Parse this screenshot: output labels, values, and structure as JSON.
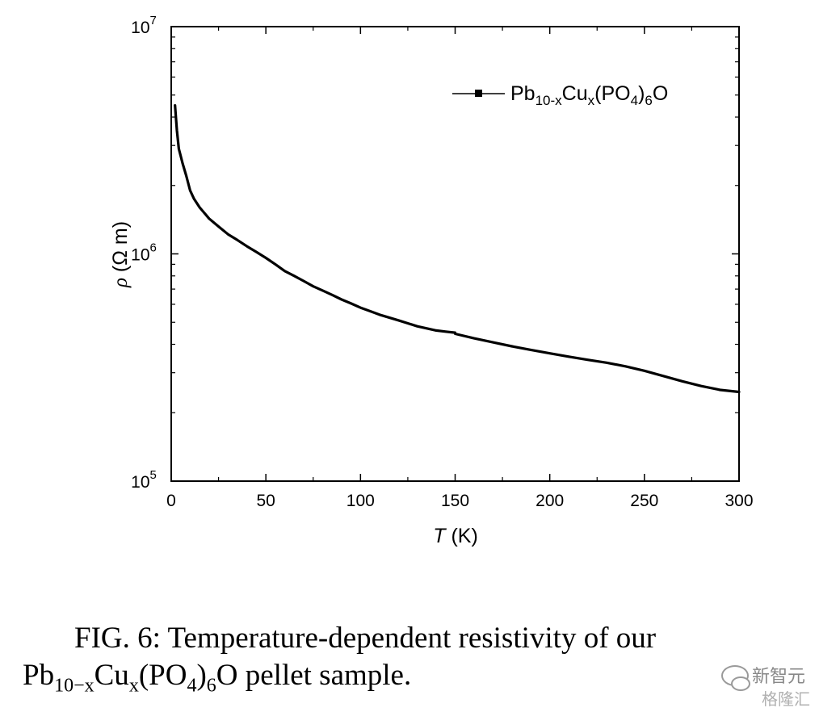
{
  "chart_data": {
    "type": "line",
    "title": "",
    "xlabel_italic": "T",
    "xlabel_rest": " (K)",
    "ylabel_italic": "ρ",
    "ylabel_rest": " (Ω m)",
    "xlim": [
      0,
      300
    ],
    "ylim": [
      100000,
      10000000
    ],
    "yscale": "log",
    "x_ticks": [
      "0",
      "50",
      "100",
      "150",
      "200",
      "250",
      "300"
    ],
    "y_ticks": [
      {
        "base": "10",
        "exp": "5"
      },
      {
        "base": "10",
        "exp": "6"
      },
      {
        "base": "10",
        "exp": "7"
      }
    ],
    "grid": false,
    "legend_position": "top-right",
    "series": [
      {
        "name": "Pb10-xCux(PO4)6O",
        "color": "#000000",
        "x": [
          2,
          3,
          4,
          5,
          6,
          8,
          10,
          12,
          15,
          20,
          25,
          30,
          35,
          40,
          45,
          50,
          55,
          60,
          65,
          70,
          75,
          80,
          85,
          90,
          95,
          100,
          105,
          110,
          115,
          120,
          125,
          130,
          135,
          140,
          145,
          150,
          150,
          160,
          170,
          180,
          190,
          200,
          210,
          220,
          230,
          240,
          250,
          260,
          270,
          280,
          290,
          300
        ],
        "y": [
          4500000,
          3500000,
          2900000,
          2700000,
          2500000,
          2200000,
          1900000,
          1750000,
          1600000,
          1430000,
          1320000,
          1220000,
          1150000,
          1080000,
          1020000,
          960000,
          900000,
          840000,
          800000,
          760000,
          720000,
          690000,
          660000,
          630000,
          605000,
          580000,
          560000,
          540000,
          525000,
          510000,
          495000,
          480000,
          470000,
          460000,
          455000,
          450000,
          445000,
          425000,
          408000,
          392000,
          378000,
          365000,
          353000,
          342000,
          332000,
          320000,
          306000,
          290000,
          275000,
          262000,
          252000,
          247000
        ]
      }
    ],
    "legend_label": {
      "base": "Pb",
      "s1": "10-x",
      "mid": "Cu",
      "s2": "x",
      "mid2": "(PO",
      "s3": "4",
      "mid3": ")",
      "s4": "6",
      "end": "O"
    }
  },
  "caption": {
    "line1": "FIG. 6:  Temperature-dependent resistivity of our",
    "line2_base": "Pb",
    "line2_sub1": "10−x",
    "line2_cu": "Cu",
    "line2_sub2": "x",
    "line2_po": "(PO",
    "line2_sub3": "4",
    "line2_close": ")",
    "line2_sub4": "6",
    "line2_end": "O pellet sample."
  },
  "watermark": {
    "name": "新智元",
    "sub": "格隆汇"
  }
}
